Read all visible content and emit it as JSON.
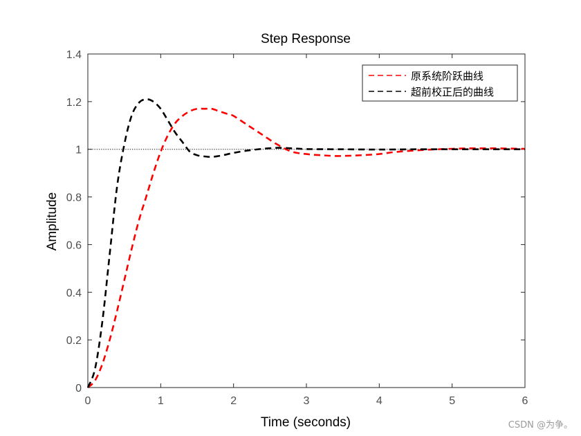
{
  "chart_data": {
    "type": "line",
    "title": "Step Response",
    "xlabel": "Time (seconds)",
    "ylabel": "Amplitude",
    "xlim": [
      0,
      6
    ],
    "ylim": [
      0,
      1.4
    ],
    "xticks": [
      0,
      1,
      2,
      3,
      4,
      5,
      6
    ],
    "yticks": [
      0,
      0.2,
      0.4,
      0.6,
      0.8,
      1,
      1.2,
      1.4
    ],
    "xtick_labels": [
      "0",
      "1",
      "2",
      "3",
      "4",
      "5",
      "6"
    ],
    "ytick_labels": [
      "0",
      "0.2",
      "0.4",
      "0.6",
      "0.8",
      "1",
      "1.2",
      "1.4"
    ],
    "grid": false,
    "legend_position": "top-right",
    "reference_line": {
      "y": 1,
      "style": "dotted",
      "color": "#000000"
    },
    "series": [
      {
        "name": "原系统阶跃曲线",
        "color": "#ff0000",
        "line_style": "dashed",
        "x": [
          0,
          0.1,
          0.2,
          0.3,
          0.4,
          0.5,
          0.6,
          0.7,
          0.8,
          0.9,
          1.0,
          1.1,
          1.2,
          1.3,
          1.4,
          1.5,
          1.6,
          1.7,
          1.8,
          1.9,
          2.0,
          2.2,
          2.4,
          2.6,
          2.8,
          3.0,
          3.2,
          3.4,
          3.6,
          3.8,
          4.0,
          4.2,
          4.4,
          4.6,
          4.8,
          5.0,
          5.2,
          5.4,
          5.6,
          5.8,
          6.0
        ],
        "values": [
          0,
          0.03,
          0.1,
          0.2,
          0.32,
          0.45,
          0.58,
          0.7,
          0.8,
          0.9,
          0.99,
          1.06,
          1.11,
          1.14,
          1.16,
          1.17,
          1.17,
          1.17,
          1.16,
          1.15,
          1.14,
          1.1,
          1.06,
          1.02,
          0.99,
          0.98,
          0.975,
          0.972,
          0.973,
          0.976,
          0.98,
          0.988,
          0.993,
          0.997,
          1.0,
          1.002,
          1.004,
          1.004,
          1.004,
          1.003,
          1.002
        ]
      },
      {
        "name": "超前校正后的曲线",
        "color": "#000000",
        "line_style": "dashed",
        "x": [
          0,
          0.1,
          0.2,
          0.3,
          0.4,
          0.5,
          0.6,
          0.7,
          0.8,
          0.9,
          1.0,
          1.1,
          1.2,
          1.3,
          1.4,
          1.5,
          1.6,
          1.7,
          1.8,
          1.9,
          2.0,
          2.2,
          2.4,
          2.6,
          2.8,
          3.0,
          3.5,
          4.0,
          4.5,
          5.0,
          5.5,
          6.0
        ],
        "values": [
          0,
          0.08,
          0.28,
          0.56,
          0.84,
          1.02,
          1.14,
          1.195,
          1.21,
          1.2,
          1.17,
          1.12,
          1.07,
          1.03,
          0.99,
          0.975,
          0.97,
          0.968,
          0.972,
          0.978,
          0.985,
          0.995,
          1.002,
          1.006,
          1.004,
          1.001,
          1.0,
          0.999,
          1.0,
          1.0,
          1.0,
          1.0
        ]
      }
    ]
  },
  "watermark": "CSDN @为争。"
}
